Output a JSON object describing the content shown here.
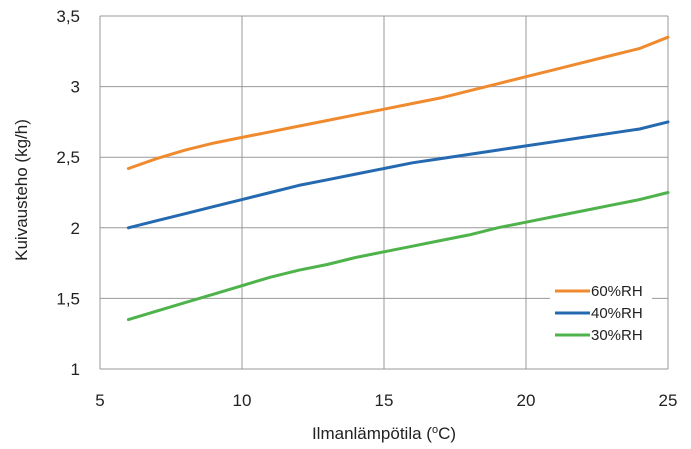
{
  "chart_data": {
    "type": "line",
    "title": "",
    "xlabel_main": "Ilmanlämpötila (",
    "xlabel_sup": "o",
    "xlabel_end": "C)",
    "ylabel": "Kuivausteho (kg/h)",
    "xlim": [
      5,
      25
    ],
    "ylim": [
      1,
      3.5
    ],
    "xticks": [
      5,
      10,
      15,
      20,
      25
    ],
    "yticks": [
      1,
      1.5,
      2,
      2.5,
      3,
      3.5
    ],
    "xtick_labels": [
      "5",
      "10",
      "15",
      "20",
      "25"
    ],
    "ytick_labels": [
      "1",
      "1,5",
      "2",
      "2,5",
      "3",
      "3,5"
    ],
    "grid": true,
    "legend_position": "lower-right",
    "series": [
      {
        "name": "60%RH",
        "color": "#F08A2E",
        "x": [
          6,
          7,
          8,
          9,
          10,
          11,
          12,
          13,
          14,
          15,
          16,
          17,
          18,
          19,
          20,
          21,
          22,
          23,
          24,
          25
        ],
        "y": [
          2.42,
          2.49,
          2.55,
          2.6,
          2.64,
          2.68,
          2.72,
          2.76,
          2.8,
          2.84,
          2.88,
          2.92,
          2.97,
          3.02,
          3.07,
          3.12,
          3.17,
          3.22,
          3.27,
          3.35
        ]
      },
      {
        "name": "40%RH",
        "color": "#2569B0",
        "x": [
          6,
          7,
          8,
          9,
          10,
          11,
          12,
          13,
          14,
          15,
          16,
          17,
          18,
          19,
          20,
          21,
          22,
          23,
          24,
          25
        ],
        "y": [
          2.0,
          2.05,
          2.1,
          2.15,
          2.2,
          2.25,
          2.3,
          2.34,
          2.38,
          2.42,
          2.46,
          2.49,
          2.52,
          2.55,
          2.58,
          2.61,
          2.64,
          2.67,
          2.7,
          2.75
        ]
      },
      {
        "name": "30%RH",
        "color": "#4DB34A",
        "x": [
          6,
          7,
          8,
          9,
          10,
          11,
          12,
          13,
          14,
          15,
          16,
          17,
          18,
          19,
          20,
          21,
          22,
          23,
          24,
          25
        ],
        "y": [
          1.35,
          1.41,
          1.47,
          1.53,
          1.59,
          1.65,
          1.7,
          1.74,
          1.79,
          1.83,
          1.87,
          1.91,
          1.95,
          2.0,
          2.04,
          2.08,
          2.12,
          2.16,
          2.2,
          2.25
        ]
      }
    ]
  }
}
